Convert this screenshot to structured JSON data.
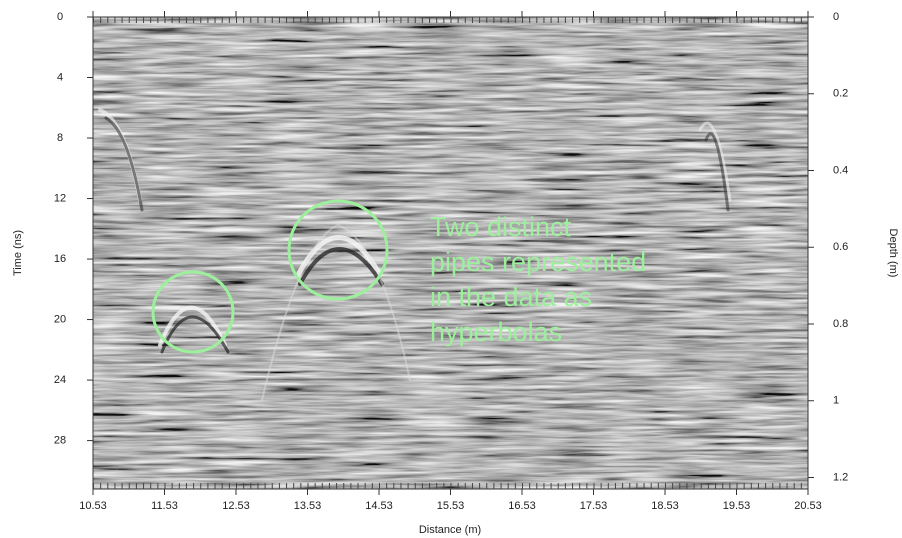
{
  "chart_data": {
    "type": "radargram",
    "xlabel": "Distance (m)",
    "ylabel": "Time (ns)",
    "y2label": "Depth (m)",
    "xlim": [
      10.53,
      20.53
    ],
    "xticks": [
      10.53,
      11.53,
      12.53,
      13.53,
      14.53,
      15.53,
      16.53,
      17.53,
      18.53,
      19.53,
      20.53
    ],
    "ylim": [
      0,
      31.2
    ],
    "yticks": [
      0,
      4,
      8,
      12,
      16,
      20,
      24,
      28
    ],
    "y2lim": [
      0,
      1.23
    ],
    "y2ticks": [
      0,
      0.2,
      0.4,
      0.6,
      0.8,
      1,
      1.2
    ],
    "annotation": {
      "lines": [
        "Two distinct",
        "pipes represented",
        "in the data as",
        "hyperbolas"
      ],
      "color": "#9cf09c"
    }
  }
}
